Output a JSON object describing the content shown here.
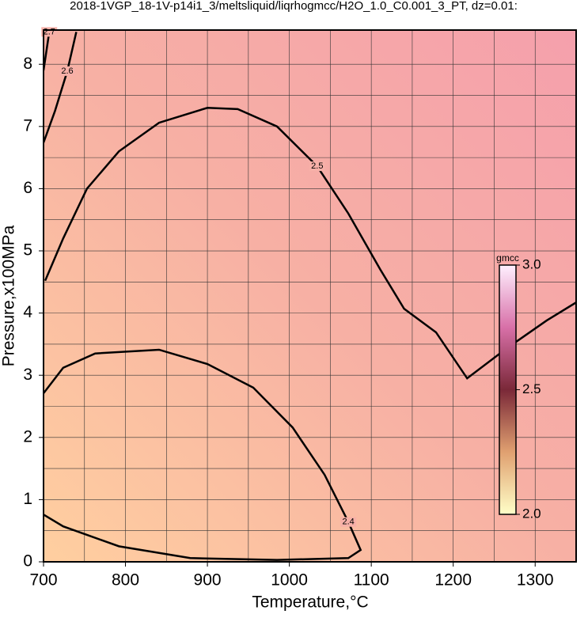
{
  "chart_data": {
    "type": "contour",
    "title": "2018-1VGP_18-1V-p14i1_3/meltsliquid/liqrhogmcc/H2O_1.0_C0.001_3_PT, dz=0.01:",
    "x_label": "Temperature,°C",
    "y_label": "Pressure,x100MPa",
    "xlim": [
      700,
      1350
    ],
    "ylim": [
      0,
      8.55
    ],
    "xticks": [
      700,
      800,
      900,
      1000,
      1100,
      1200,
      1300
    ],
    "yticks": [
      0,
      1,
      2,
      3,
      4,
      5,
      6,
      7,
      8
    ],
    "xminorticks": [
      750,
      850,
      950,
      1050,
      1150,
      1250
    ],
    "yminorticks": [
      0.5,
      1.5,
      2.5,
      3.5,
      4.5,
      5.5,
      6.5,
      7.5
    ],
    "grid": true,
    "contours": [
      {
        "level": 2.5,
        "x": [
          702,
          724,
          753,
          792,
          841,
          900,
          937,
          985,
          1034,
          1072,
          1111,
          1140,
          1179,
          1217,
          1265,
          1314,
          1350
        ],
        "y": [
          4.52,
          5.2,
          6.0,
          6.6,
          7.06,
          7.3,
          7.28,
          7.0,
          6.36,
          5.6,
          4.7,
          4.07,
          3.69,
          2.95,
          3.43,
          3.88,
          4.17
        ]
      },
      {
        "level": 2.4,
        "x": [
          700,
          724,
          763,
          841,
          900,
          956,
          1004,
          1043,
          1072,
          1087,
          1072,
          985,
          879,
          792,
          724,
          700
        ],
        "y": [
          2.71,
          3.12,
          3.35,
          3.41,
          3.18,
          2.8,
          2.16,
          1.4,
          0.64,
          0.19,
          0.06,
          0.03,
          0.06,
          0.25,
          0.57,
          0.76
        ]
      },
      {
        "level": 2.6,
        "x": [
          700,
          714,
          729,
          740
        ],
        "y": [
          6.74,
          7.25,
          7.89,
          8.52
        ]
      },
      {
        "level": 2.7,
        "x": [
          700,
          707
        ],
        "y": [
          7.9,
          8.52
        ]
      }
    ],
    "colorbar": {
      "label": "gmcc",
      "lim": [
        2,
        3
      ],
      "ticks": [
        {
          "value": 2,
          "label": "2.0"
        },
        {
          "value": 2.5,
          "label": "2.5"
        },
        {
          "value": 3,
          "label": "3.0"
        }
      ]
    }
  }
}
